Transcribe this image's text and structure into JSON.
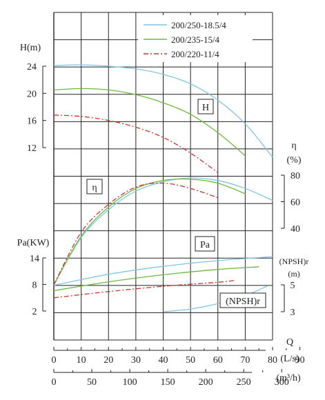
{
  "chart_data": {
    "type": "line",
    "legend": {
      "position": "top-right",
      "entries": [
        {
          "name": "200/250-18.5/4",
          "color": "#7fc6e4",
          "dash": "solid"
        },
        {
          "name": "200/235-15/4",
          "color": "#6cb83c",
          "dash": "solid"
        },
        {
          "name": "200/220-11/4",
          "color": "#c8332e",
          "dash": "dashdot"
        }
      ]
    },
    "x_axis": {
      "q_name": "Q",
      "q_unit": "(L/s)",
      "q_ticks": [
        "0",
        "10",
        "20",
        "30",
        "40",
        "50",
        "60",
        "70",
        "80",
        "90"
      ],
      "m3h_unit": "(m³/h)",
      "m3h_ticks": [
        "0",
        "50",
        "100",
        "150",
        "200",
        "250",
        "300"
      ],
      "range": [
        0,
        95
      ]
    },
    "axes": {
      "head": {
        "label": "H(m)",
        "ticks": [
          "24",
          "20",
          "16",
          "12"
        ],
        "range": [
          12,
          24
        ]
      },
      "eff": {
        "label": "η",
        "unit": "(%)",
        "ticks": [
          "80",
          "60",
          "40"
        ],
        "range": [
          40,
          80
        ]
      },
      "power": {
        "label": "Pa(KW)",
        "ticks": [
          "14",
          "8",
          "2"
        ],
        "range": [
          2,
          14
        ]
      },
      "npsh": {
        "label": "(NPSH)r",
        "unit": "(m)",
        "ticks": [
          "5",
          "3"
        ],
        "range": [
          3,
          5
        ]
      }
    },
    "panel_labels": {
      "head": "H",
      "eff": "η",
      "power": "Pa",
      "npsh": "(NPSH)r"
    },
    "series": [
      {
        "name": "200/250-18.5/4",
        "head": {
          "x": [
            0,
            10,
            20,
            30,
            40,
            50,
            60,
            70,
            80
          ],
          "y": [
            24.1,
            24.2,
            24.0,
            23.6,
            22.8,
            21.4,
            19.0,
            15.5,
            10.6
          ]
        },
        "eff": {
          "x": [
            0,
            10,
            20,
            30,
            40,
            50,
            60,
            70,
            80
          ],
          "y": [
            0,
            33,
            54,
            68,
            75,
            78,
            76,
            70,
            61
          ]
        },
        "power": {
          "x": [
            0,
            20,
            40,
            60,
            80
          ],
          "y": [
            7.8,
            10.3,
            12.1,
            13.4,
            14.3
          ]
        },
        "npsh": {
          "x": [
            40,
            50,
            60,
            70,
            78
          ],
          "y": [
            3.0,
            3.2,
            3.6,
            4.2,
            4.9
          ]
        }
      },
      {
        "name": "200/235-15/4",
        "head": {
          "x": [
            0,
            10,
            20,
            30,
            40,
            50,
            60,
            70
          ],
          "y": [
            20.5,
            20.7,
            20.5,
            19.8,
            18.6,
            16.9,
            14.2,
            10.8
          ]
        },
        "eff": {
          "x": [
            0,
            10,
            20,
            30,
            40,
            50,
            60,
            70
          ],
          "y": [
            0,
            34,
            56,
            70,
            76,
            77,
            74,
            66
          ]
        },
        "power": {
          "x": [
            0,
            20,
            40,
            60,
            75
          ],
          "y": [
            6.6,
            8.6,
            10.2,
            11.4,
            12.0
          ]
        },
        "npsh": {
          "x": [],
          "y": []
        }
      },
      {
        "name": "200/220-11/4",
        "head": {
          "x": [
            0,
            10,
            20,
            30,
            40,
            50,
            60
          ],
          "y": [
            16.8,
            16.6,
            16.0,
            15.0,
            13.5,
            11.2,
            8.3
          ]
        },
        "eff": {
          "x": [
            0,
            10,
            20,
            30,
            40,
            50,
            60
          ],
          "y": [
            0,
            37,
            58,
            71,
            74,
            70,
            63
          ]
        },
        "power": {
          "x": [
            0,
            20,
            40,
            60,
            66
          ],
          "y": [
            5.0,
            6.4,
            7.6,
            8.5,
            8.9
          ]
        },
        "npsh": {
          "x": [],
          "y": []
        }
      }
    ]
  }
}
